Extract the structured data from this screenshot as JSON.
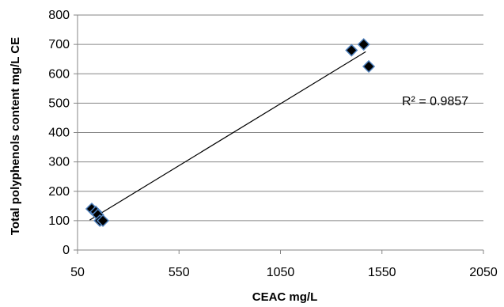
{
  "chart_data": {
    "type": "scatter",
    "xlabel": "CEAC mg/L",
    "ylabel": "Total polyphenols content mg/L CE",
    "xlim": [
      50,
      2050
    ],
    "ylim": [
      0,
      800
    ],
    "xticks": [
      50,
      550,
      1050,
      1550,
      2050
    ],
    "yticks": [
      0,
      100,
      200,
      300,
      400,
      500,
      600,
      700,
      800
    ],
    "grid": "horizontal",
    "series": [
      {
        "points": [
          {
            "x": 120,
            "y": 140
          },
          {
            "x": 140,
            "y": 130
          },
          {
            "x": 150,
            "y": 120
          },
          {
            "x": 160,
            "y": 100
          },
          {
            "x": 175,
            "y": 100
          },
          {
            "x": 1400,
            "y": 680
          },
          {
            "x": 1460,
            "y": 700
          },
          {
            "x": 1485,
            "y": 625
          }
        ],
        "marker": "diamond",
        "color": "#000000",
        "edge_color": "#4f81bd"
      }
    ],
    "trendline": {
      "x": [
        110,
        1470
      ],
      "y": [
        102,
        675
      ],
      "color": "#000000"
    },
    "annotation": "R² = 0.9857"
  }
}
